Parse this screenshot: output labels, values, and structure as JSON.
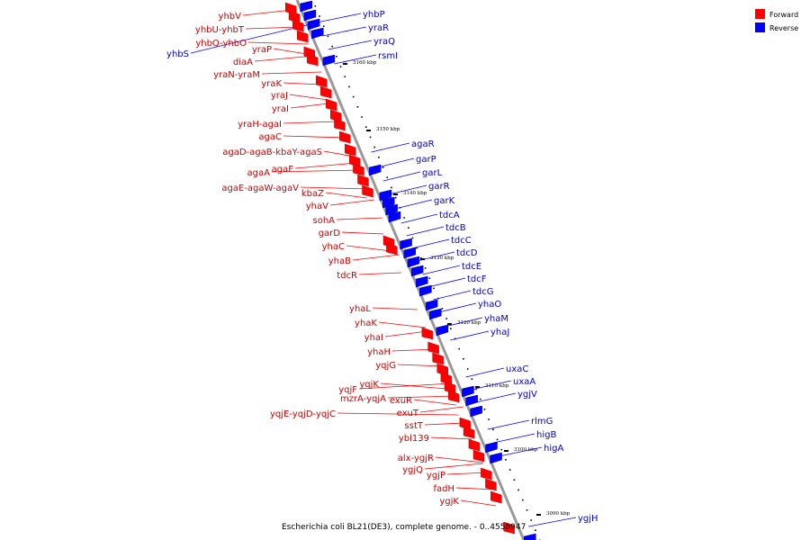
{
  "caption": "Escherichia coli BL21(DE3), complete genome. - 0..4558947",
  "legend": [
    {
      "label": "Forward",
      "color": "#ff0000"
    },
    {
      "label": "Reverse",
      "color": "#0000ff"
    }
  ],
  "colors": {
    "forward": "#ff0000",
    "reverse": "#0000ff",
    "backbone": "#999999"
  },
  "ticks": [
    {
      "label": "3160 kbp"
    },
    {
      "label": "3150 kbp"
    },
    {
      "label": "3140 kbp"
    },
    {
      "label": "3130 kbp"
    },
    {
      "label": "3120 kbp"
    },
    {
      "label": "3110 kbp"
    },
    {
      "label": "3100 kbp"
    },
    {
      "label": "3090 kbp"
    }
  ],
  "forward_labels": [
    [
      "yhbV"
    ],
    [
      "yhbU",
      "yhbT"
    ],
    [
      "yhbQ",
      "yhbO"
    ],
    [
      "yraP"
    ],
    [
      "diaA"
    ],
    [
      "yraN",
      "yraM"
    ],
    [
      "yraK"
    ],
    [
      "yraJ"
    ],
    [
      "yraI"
    ],
    [
      "yraH",
      "agaI"
    ],
    [
      "agaC"
    ],
    [
      "agaD",
      "agaB",
      "kbaY",
      "agaS"
    ],
    [
      "agaF"
    ],
    [
      "agaA"
    ],
    [
      "agaE",
      "agaW",
      "agaV"
    ],
    [
      "kbaZ"
    ],
    [
      "yhaV"
    ],
    [
      "sohA"
    ],
    [
      "garD"
    ],
    [
      "yhaC"
    ],
    [
      "yhaB"
    ],
    [
      "tdcR"
    ],
    [
      "yhaL"
    ],
    [
      "yhaK"
    ],
    [
      "yhaI"
    ],
    [
      "yhaH"
    ],
    [
      "yqjG"
    ],
    [
      "yqjK"
    ],
    [
      "yqjF"
    ],
    [
      "mzrA",
      "yqjA"
    ],
    [
      "yqjE",
      "yqjD",
      "yqjC"
    ],
    [
      "exuR"
    ],
    [
      "exuT"
    ],
    [
      "sstT"
    ],
    [
      "ybl139"
    ],
    [
      "alx",
      "ygjR"
    ],
    [
      "ygjQ"
    ],
    [
      "ygjP"
    ],
    [
      "fadH"
    ],
    [
      "ygjK"
    ]
  ],
  "reverse_labels": [
    [
      "yhbP"
    ],
    [
      "yraR"
    ],
    [
      "yraQ"
    ],
    [
      "yhbS"
    ],
    [
      "rsmI"
    ],
    [
      "agaR"
    ],
    [
      "garP"
    ],
    [
      "garL"
    ],
    [
      "garR"
    ],
    [
      "garK"
    ],
    [
      "tdcA"
    ],
    [
      "tdcB"
    ],
    [
      "tdcC"
    ],
    [
      "tdcD"
    ],
    [
      "tdcE"
    ],
    [
      "tdcF"
    ],
    [
      "tdcG"
    ],
    [
      "yhaO"
    ],
    [
      "yhaM"
    ],
    [
      "yhaJ"
    ],
    [
      "uxaC"
    ],
    [
      "uxaA"
    ],
    [
      "ygjV"
    ],
    [
      "rlmG"
    ],
    [
      "higB"
    ],
    [
      "higA"
    ],
    [
      "ygjH"
    ]
  ]
}
